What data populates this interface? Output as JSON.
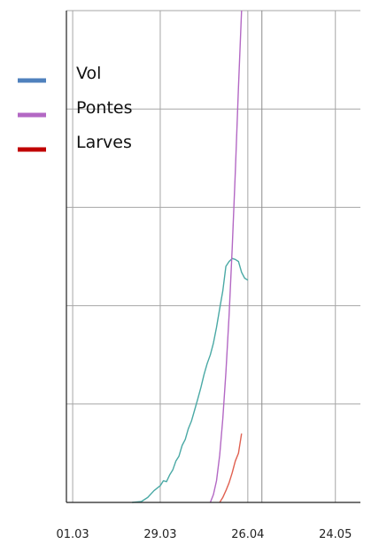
{
  "chart_data": {
    "type": "line",
    "title": "",
    "xlabel": "",
    "ylabel": "",
    "grid": true,
    "legend": "left",
    "x_ticks": [
      {
        "label": "01.03",
        "day": 0
      },
      {
        "label": "29.03",
        "day": 28
      },
      {
        "label": "26.04",
        "day": 56
      },
      {
        "label": "24.05",
        "day": 84
      }
    ],
    "x_range_days": [
      -2,
      92
    ],
    "y_range": [
      0,
      5
    ],
    "y_gridlines": [
      1,
      2,
      3,
      4,
      5
    ],
    "vline_day": 60.5,
    "series": [
      {
        "name": "Vol",
        "legend_color": "#4f81bd",
        "line_color": "#4aa9a5",
        "points": [
          [
            19,
            0.0
          ],
          [
            22,
            0.01
          ],
          [
            24,
            0.05
          ],
          [
            26,
            0.12
          ],
          [
            28,
            0.17
          ],
          [
            29,
            0.22
          ],
          [
            30,
            0.21
          ],
          [
            31,
            0.28
          ],
          [
            32,
            0.33
          ],
          [
            33,
            0.42
          ],
          [
            34,
            0.47
          ],
          [
            35,
            0.58
          ],
          [
            36,
            0.64
          ],
          [
            37,
            0.75
          ],
          [
            38,
            0.83
          ],
          [
            39,
            0.94
          ],
          [
            40,
            1.05
          ],
          [
            41,
            1.17
          ],
          [
            42,
            1.3
          ],
          [
            43,
            1.41
          ],
          [
            44,
            1.5
          ],
          [
            45,
            1.62
          ],
          [
            46,
            1.78
          ],
          [
            47,
            1.97
          ],
          [
            48,
            2.15
          ],
          [
            49,
            2.4
          ],
          [
            50,
            2.45
          ],
          [
            51,
            2.48
          ],
          [
            52,
            2.47
          ],
          [
            53,
            2.45
          ],
          [
            54,
            2.34
          ],
          [
            55,
            2.28
          ],
          [
            56,
            2.26
          ]
        ]
      },
      {
        "name": "Pontes",
        "legend_color": "#b368c4",
        "line_color": "#b368c4",
        "points": [
          [
            44,
            0.0
          ],
          [
            45,
            0.08
          ],
          [
            46,
            0.22
          ],
          [
            47,
            0.48
          ],
          [
            48,
            0.85
          ],
          [
            49,
            1.32
          ],
          [
            50,
            1.9
          ],
          [
            51,
            2.58
          ],
          [
            52,
            3.35
          ],
          [
            53,
            4.22
          ],
          [
            54,
            5.0
          ]
        ]
      },
      {
        "name": "Larves",
        "legend_color": "#c00000",
        "line_color": "#e06050",
        "points": [
          [
            47,
            0.0
          ],
          [
            48,
            0.05
          ],
          [
            49,
            0.12
          ],
          [
            50,
            0.2
          ],
          [
            51,
            0.3
          ],
          [
            52,
            0.42
          ],
          [
            53,
            0.5
          ],
          [
            54,
            0.7
          ]
        ]
      }
    ]
  }
}
